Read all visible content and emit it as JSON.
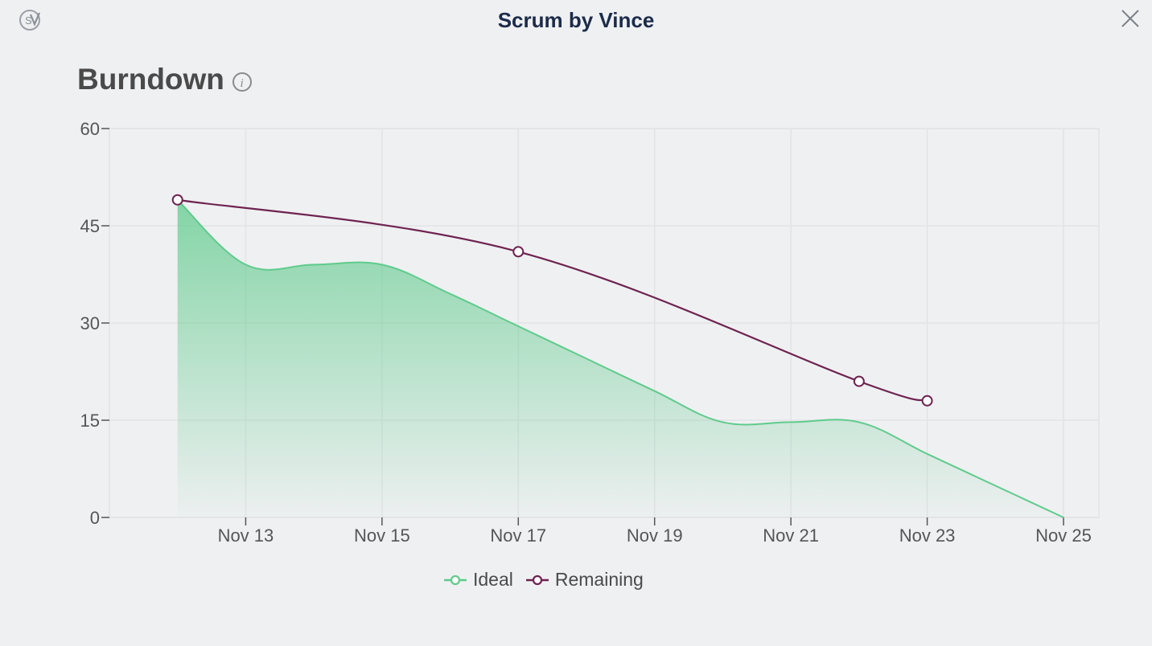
{
  "window": {
    "title": "Scrum by Vince",
    "logo_letter": "S"
  },
  "header": {
    "title": "Burndown"
  },
  "colors": {
    "ideal": "#5fcb8c",
    "remaining": "#6e2350",
    "grid": "#e2e3e6",
    "axis_text": "#555555"
  },
  "chart_data": {
    "type": "area",
    "title": "Burndown",
    "xlabel": "",
    "ylabel": "",
    "x_ticks": [
      "Nov 13",
      "Nov 15",
      "Nov 17",
      "Nov 19",
      "Nov 21",
      "Nov 23",
      "Nov 25"
    ],
    "y_ticks": [
      0,
      15,
      30,
      45,
      60
    ],
    "ylim": [
      0,
      60
    ],
    "xlim": [
      "Nov 11",
      "Nov 25"
    ],
    "grid": true,
    "legend_position": "bottom",
    "series": [
      {
        "name": "Ideal",
        "kind": "area",
        "points": [
          {
            "x": "Nov 12",
            "y": 49
          },
          {
            "x": "Nov 13",
            "y": 39
          },
          {
            "x": "Nov 14",
            "y": 39
          },
          {
            "x": "Nov 15",
            "y": 39
          },
          {
            "x": "Nov 16",
            "y": 34.5
          },
          {
            "x": "Nov 17",
            "y": 29.5
          },
          {
            "x": "Nov 18",
            "y": 24.5
          },
          {
            "x": "Nov 19",
            "y": 19.5
          },
          {
            "x": "Nov 20",
            "y": 14.7
          },
          {
            "x": "Nov 21",
            "y": 14.7
          },
          {
            "x": "Nov 22",
            "y": 14.7
          },
          {
            "x": "Nov 23",
            "y": 9.8
          },
          {
            "x": "Nov 24",
            "y": 4.9
          },
          {
            "x": "Nov 25",
            "y": 0
          }
        ]
      },
      {
        "name": "Remaining",
        "kind": "line",
        "points": [
          {
            "x": "Nov 12",
            "y": 49
          },
          {
            "x": "Nov 17",
            "y": 41
          },
          {
            "x": "Nov 22",
            "y": 21
          },
          {
            "x": "Nov 23",
            "y": 18
          }
        ]
      }
    ]
  }
}
